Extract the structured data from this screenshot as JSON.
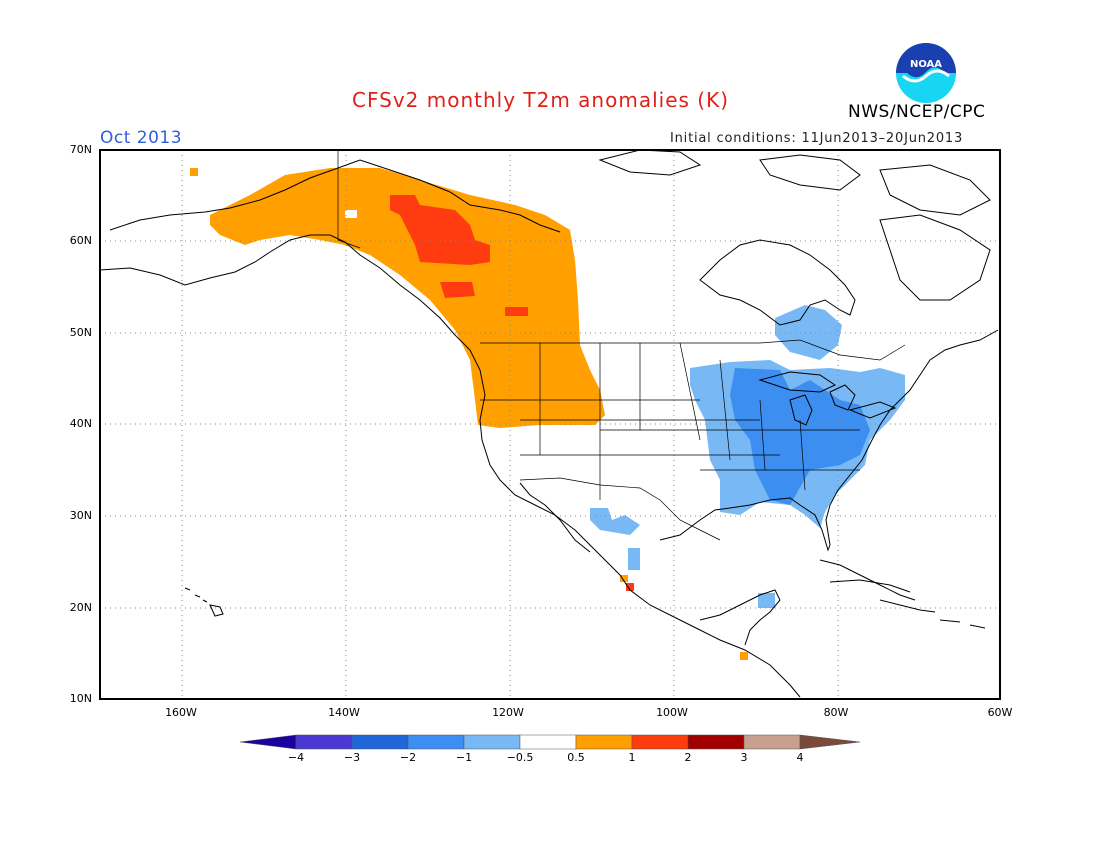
{
  "header": {
    "title": "CFSv2 monthly T2m anomalies (K)",
    "agency": "NWS/NCEP/CPC",
    "logo_text": "NOAA",
    "month": "Oct 2013",
    "initial_conditions": "Initial conditions: 11Jun2013–20Jun2013"
  },
  "map": {
    "projection": "lat-lon",
    "lon_range": [
      -170,
      -60
    ],
    "lat_range": [
      10,
      70
    ],
    "grid": "dotted",
    "lat_labels": [
      "70N",
      "60N",
      "50N",
      "40N",
      "30N",
      "20N",
      "10N"
    ],
    "lon_labels": [
      "160W",
      "140W",
      "120W",
      "100W",
      "80W",
      "60W"
    ],
    "anomaly_regions": [
      {
        "region": "Alaska / western Canada / Pacific Northwest",
        "class": "0.5 to 1",
        "color": "#ff9f00"
      },
      {
        "region": "Northern British Columbia / Yukon",
        "class": "1 to 2",
        "color": "#ff3c10"
      },
      {
        "region": "Eastern United States",
        "class": "-1 to -0.5",
        "color": "#78b9f5"
      },
      {
        "region": "Ohio Valley / Southeast core",
        "class": "-2 to -1",
        "color": "#3c8ff0"
      },
      {
        "region": "Northern Mexico / Yucatan",
        "class": "-1 to -0.5",
        "color": "#78b9f5"
      }
    ]
  },
  "colorbar": {
    "labels": [
      "−4",
      "−3",
      "−2",
      "−1",
      "−0.5",
      "0.5",
      "1",
      "2",
      "3",
      "4"
    ],
    "colors": [
      "#1c00a0",
      "#4a38d0",
      "#1f66d9",
      "#3c8ff0",
      "#78b9f5",
      "#ffffff",
      "#ff9f00",
      "#ff3c10",
      "#a00000",
      "#c8a090",
      "#7a4a3a"
    ]
  }
}
